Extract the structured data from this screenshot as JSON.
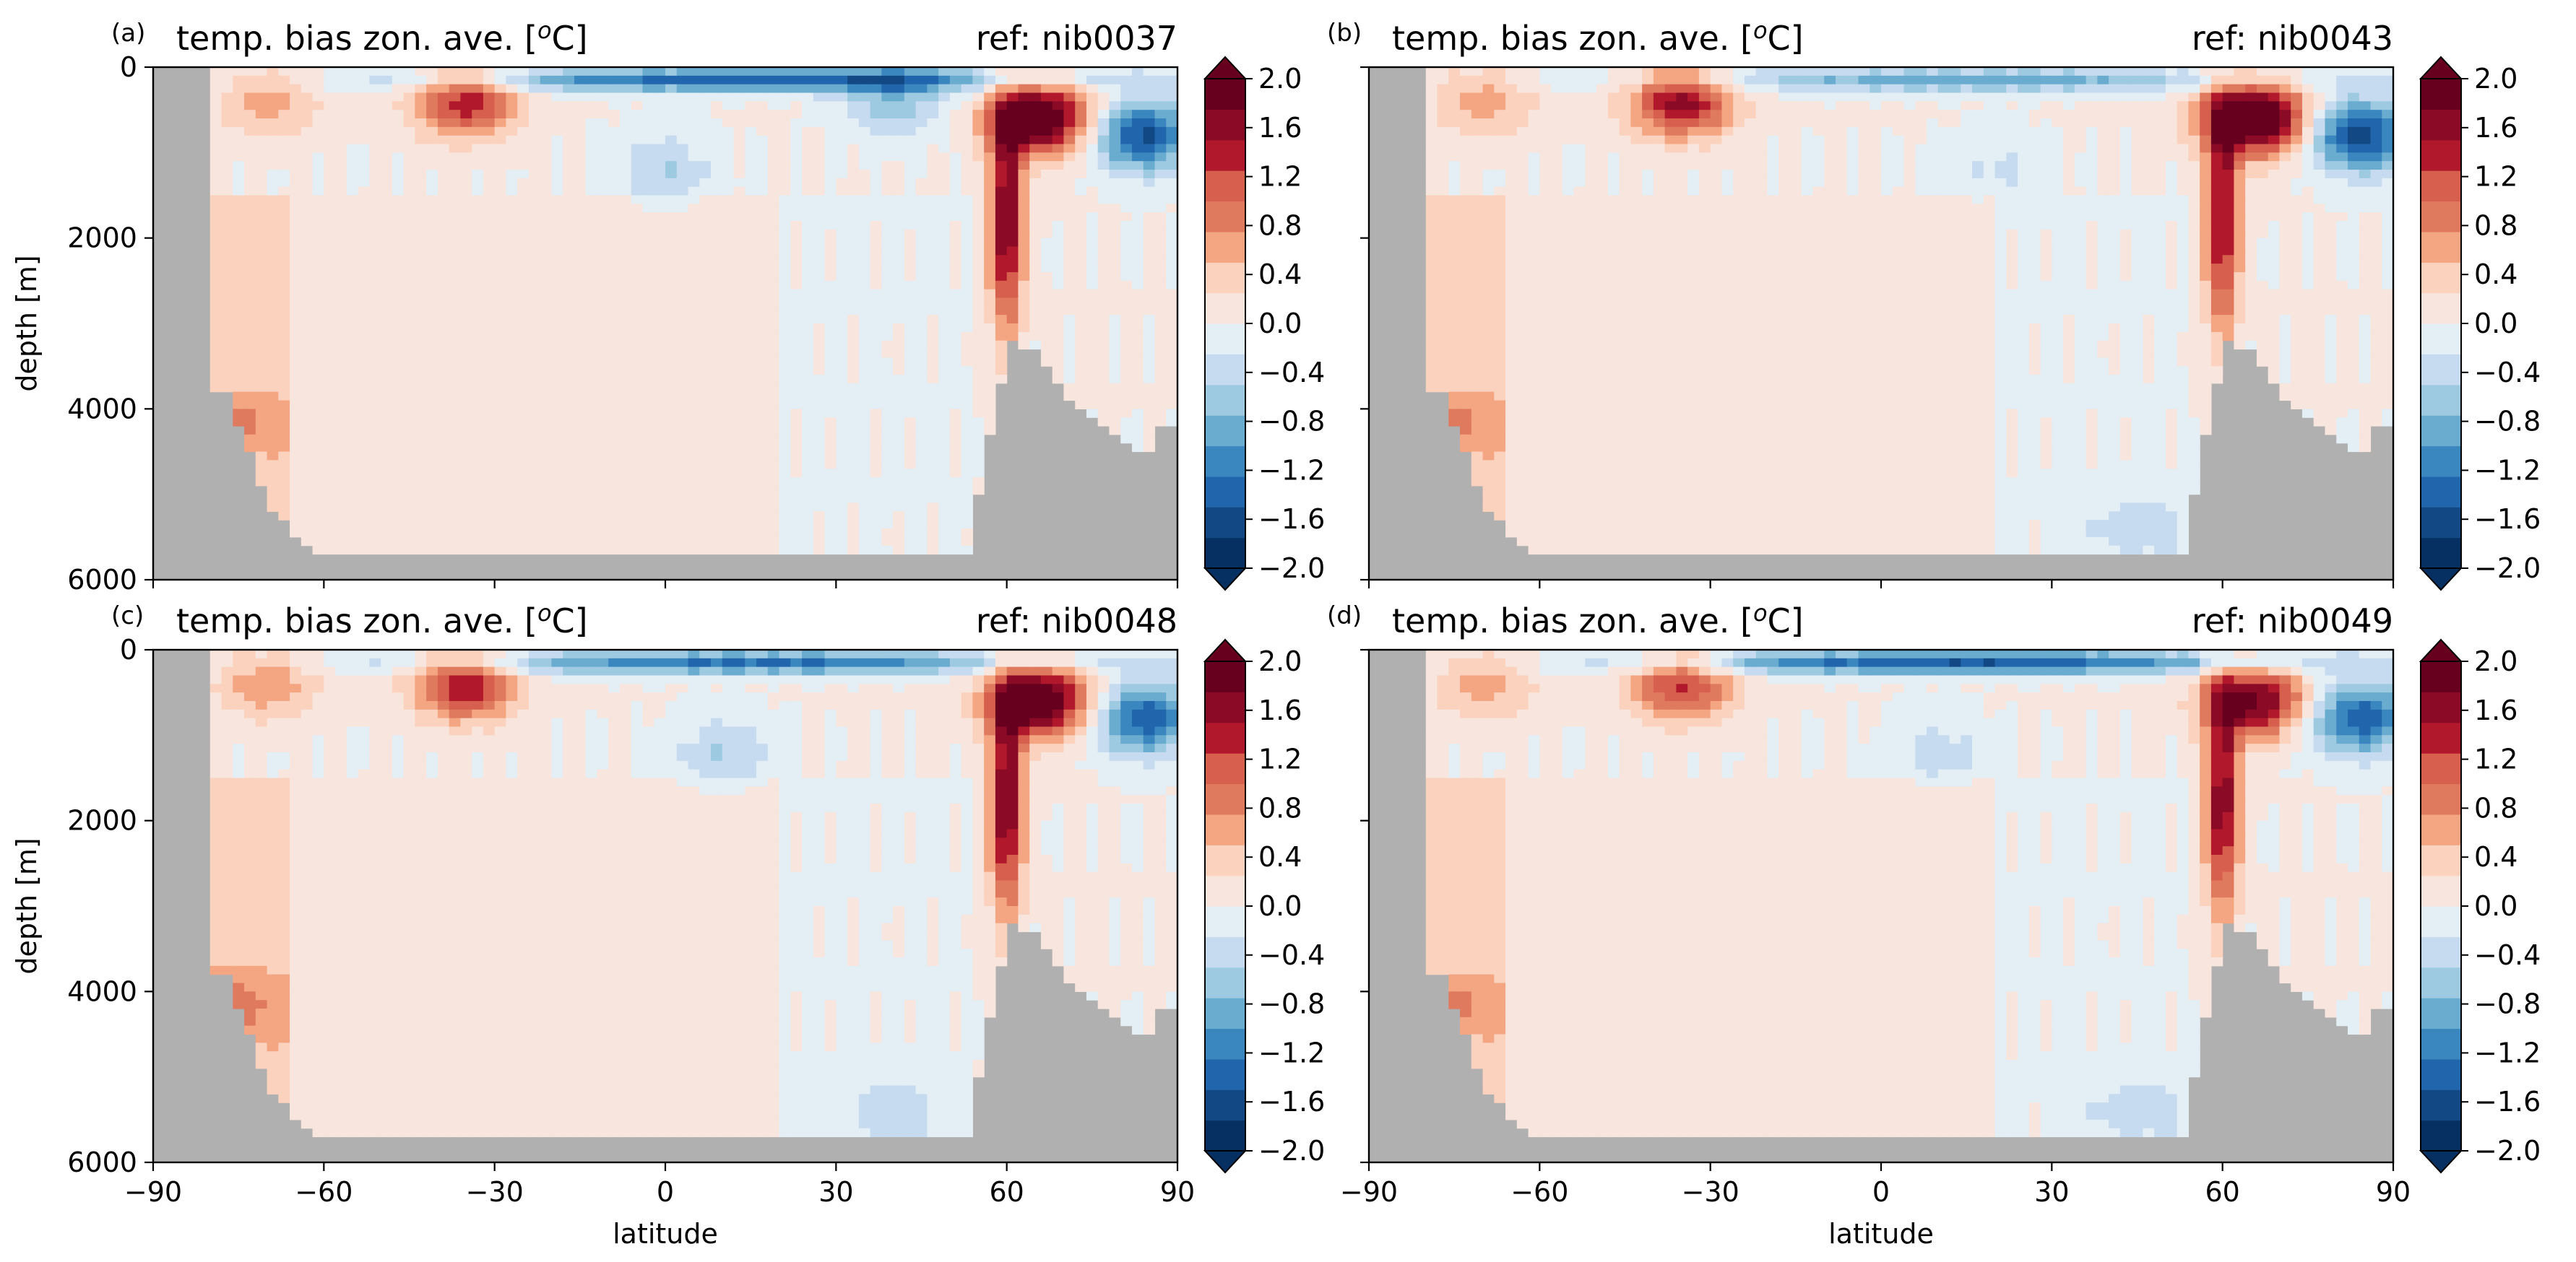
{
  "figure": {
    "colors": {
      "land": "#b0b0b0",
      "frame": "#000000",
      "colormap": [
        "#053061",
        "#124984",
        "#2166ac",
        "#3a87bf",
        "#6aabd0",
        "#9ecae1",
        "#c6dbef",
        "#e3eef5",
        "#f8e5dd",
        "#fbd2be",
        "#f4a582",
        "#e07a5f",
        "#d6604d",
        "#b2182b",
        "#8b0a26",
        "#67001f"
      ]
    },
    "colormap_name": "RdBu_r"
  },
  "chart_data": [
    {
      "type": "heatmap",
      "panel_label": "(a)",
      "title": "temp. bias zon. ave. [°C]",
      "title_prefix": "temp. bias zon. ave. [",
      "title_sup": "o",
      "title_suffix": "C]",
      "ref": "ref: nib0037",
      "xlabel": "",
      "ylabel": "depth [m]",
      "xlim": [
        -90,
        90
      ],
      "ylim": [
        6000,
        0
      ],
      "xticks": [
        -90,
        -60,
        -30,
        0,
        30,
        60,
        90
      ],
      "xtick_labels": [],
      "yticks": [
        0,
        2000,
        4000,
        6000
      ],
      "ytick_labels": [
        "0",
        "2000",
        "4000",
        "6000"
      ],
      "colorbar": {
        "min": -2.0,
        "max": 2.0,
        "extend": "both",
        "ticks": [
          "2.0",
          "1.6",
          "1.2",
          "0.8",
          "0.4",
          "0.0",
          "−0.4",
          "−0.8",
          "−1.2",
          "−1.6",
          "−2.0"
        ]
      },
      "antarctic_deep_warm_bias": 0.2,
      "features": [
        {
          "name": "southern subtropical warm lens",
          "lat": -35,
          "depth": 400,
          "value": 1.4
        },
        {
          "name": "subantarctic surface warm",
          "lat": -70,
          "depth": 400,
          "value": 0.6
        },
        {
          "name": "upper ocean cool band",
          "lat": 15,
          "depth": 150,
          "value": -1.4
        },
        {
          "name": "tropical intermediate cool",
          "lat": 0,
          "depth": 1200,
          "value": -0.5
        },
        {
          "name": "northern intermediate cool",
          "lat": 40,
          "depth": 400,
          "value": -0.7
        },
        {
          "name": "mid-latitude warm column",
          "lat": 60,
          "depth": 1800,
          "value": 1.8
        },
        {
          "name": "subpolar warm core",
          "lat": 66,
          "depth": 600,
          "value": 2.2
        },
        {
          "name": "arctic cool",
          "lat": 84,
          "depth": 800,
          "value": -1.6
        },
        {
          "name": "southern deep warm",
          "lat": -75,
          "depth": 4200,
          "value": 0.5
        }
      ]
    },
    {
      "type": "heatmap",
      "panel_label": "(b)",
      "title": "temp. bias zon. ave. [°C]",
      "title_prefix": "temp. bias zon. ave. [",
      "title_sup": "o",
      "title_suffix": "C]",
      "ref": "ref: nib0043",
      "xlabel": "",
      "ylabel": "",
      "xlim": [
        -90,
        90
      ],
      "ylim": [
        6000,
        0
      ],
      "xticks": [
        -90,
        -60,
        -30,
        0,
        30,
        60,
        90
      ],
      "xtick_labels": [],
      "yticks": [
        0,
        2000,
        4000,
        6000
      ],
      "ytick_labels": [],
      "colorbar": {
        "min": -2.0,
        "max": 2.0,
        "extend": "both",
        "ticks": [
          "2.0",
          "1.6",
          "1.2",
          "0.8",
          "0.4",
          "0.0",
          "−0.4",
          "−0.8",
          "−1.2",
          "−1.6",
          "−2.0"
        ]
      },
      "antarctic_deep_warm_bias": 0.2,
      "features": [
        {
          "name": "southern subtropical warm lens",
          "lat": -35,
          "depth": 400,
          "value": 1.6
        },
        {
          "name": "subantarctic surface warm",
          "lat": -70,
          "depth": 400,
          "value": 0.6
        },
        {
          "name": "upper ocean cool band",
          "lat": 15,
          "depth": 150,
          "value": -0.9
        },
        {
          "name": "tropical intermediate cool",
          "lat": 20,
          "depth": 1200,
          "value": -0.3
        },
        {
          "name": "mid-latitude warm column",
          "lat": 60,
          "depth": 1800,
          "value": 1.6
        },
        {
          "name": "subpolar warm core",
          "lat": 66,
          "depth": 600,
          "value": 2.4
        },
        {
          "name": "arctic cool",
          "lat": 84,
          "depth": 800,
          "value": -1.7
        },
        {
          "name": "deep cool patch",
          "lat": 45,
          "depth": 5400,
          "value": -0.4
        },
        {
          "name": "southern deep warm",
          "lat": -75,
          "depth": 4200,
          "value": 0.5
        }
      ]
    },
    {
      "type": "heatmap",
      "panel_label": "(c)",
      "title": "temp. bias zon. ave. [°C]",
      "title_prefix": "temp. bias zon. ave. [",
      "title_sup": "o",
      "title_suffix": "C]",
      "ref": "ref: nib0048",
      "xlabel": "latitude",
      "ylabel": "depth [m]",
      "xlim": [
        -90,
        90
      ],
      "ylim": [
        6000,
        0
      ],
      "xticks": [
        -90,
        -60,
        -30,
        0,
        30,
        60,
        90
      ],
      "xtick_labels": [
        "−90",
        "−60",
        "−30",
        "0",
        "30",
        "60",
        "90"
      ],
      "yticks": [
        0,
        2000,
        4000,
        6000
      ],
      "ytick_labels": [
        "0",
        "2000",
        "4000",
        "6000"
      ],
      "colorbar": {
        "min": -2.0,
        "max": 2.0,
        "extend": "both",
        "ticks": [
          "2.0",
          "1.6",
          "1.2",
          "0.8",
          "0.4",
          "0.0",
          "−0.4",
          "−0.8",
          "−1.2",
          "−1.6",
          "−2.0"
        ]
      },
      "antarctic_deep_warm_bias": 0.25,
      "features": [
        {
          "name": "southern subtropical warm lens",
          "lat": -35,
          "depth": 400,
          "value": 1.5
        },
        {
          "name": "subantarctic surface warm",
          "lat": -70,
          "depth": 400,
          "value": 0.7
        },
        {
          "name": "upper ocean cool band",
          "lat": 15,
          "depth": 150,
          "value": -1.3
        },
        {
          "name": "tropical intermediate cool",
          "lat": 10,
          "depth": 1200,
          "value": -0.5
        },
        {
          "name": "mid-latitude warm column",
          "lat": 60,
          "depth": 1800,
          "value": 1.8
        },
        {
          "name": "subpolar warm core",
          "lat": 66,
          "depth": 600,
          "value": 2.2
        },
        {
          "name": "arctic cool",
          "lat": 84,
          "depth": 800,
          "value": -1.5
        },
        {
          "name": "deep cool patch",
          "lat": 40,
          "depth": 5400,
          "value": -0.4
        },
        {
          "name": "southern deep warm",
          "lat": -75,
          "depth": 4200,
          "value": 0.5
        }
      ]
    },
    {
      "type": "heatmap",
      "panel_label": "(d)",
      "title": "temp. bias zon. ave. [°C]",
      "title_prefix": "temp. bias zon. ave. [",
      "title_sup": "o",
      "title_suffix": "C]",
      "ref": "ref: nib0049",
      "xlabel": "latitude",
      "ylabel": "",
      "xlim": [
        -90,
        90
      ],
      "ylim": [
        6000,
        0
      ],
      "xticks": [
        -90,
        -60,
        -30,
        0,
        30,
        60,
        90
      ],
      "xtick_labels": [
        "−90",
        "−60",
        "−30",
        "0",
        "30",
        "60",
        "90"
      ],
      "yticks": [
        0,
        2000,
        4000,
        6000
      ],
      "ytick_labels": [],
      "colorbar": {
        "min": -2.0,
        "max": 2.0,
        "extend": "both",
        "ticks": [
          "2.0",
          "1.6",
          "1.2",
          "0.8",
          "0.4",
          "0.0",
          "−0.4",
          "−0.8",
          "−1.2",
          "−1.6",
          "−2.0"
        ]
      },
      "antarctic_deep_warm_bias": 0.2,
      "features": [
        {
          "name": "southern subtropical warm lens",
          "lat": -35,
          "depth": 400,
          "value": 1.3
        },
        {
          "name": "subantarctic surface warm",
          "lat": -70,
          "depth": 400,
          "value": 0.6
        },
        {
          "name": "upper ocean cool band",
          "lat": 15,
          "depth": 150,
          "value": -1.5
        },
        {
          "name": "tropical intermediate cool",
          "lat": 10,
          "depth": 1200,
          "value": -0.4
        },
        {
          "name": "mid-latitude warm column",
          "lat": 60,
          "depth": 1800,
          "value": 1.7
        },
        {
          "name": "subpolar warm core",
          "lat": 66,
          "depth": 600,
          "value": 1.8
        },
        {
          "name": "arctic cool",
          "lat": 84,
          "depth": 800,
          "value": -1.5
        },
        {
          "name": "deep cool patch",
          "lat": 45,
          "depth": 5400,
          "value": -0.4
        },
        {
          "name": "southern deep warm",
          "lat": -75,
          "depth": 4200,
          "value": 0.5
        }
      ]
    }
  ]
}
